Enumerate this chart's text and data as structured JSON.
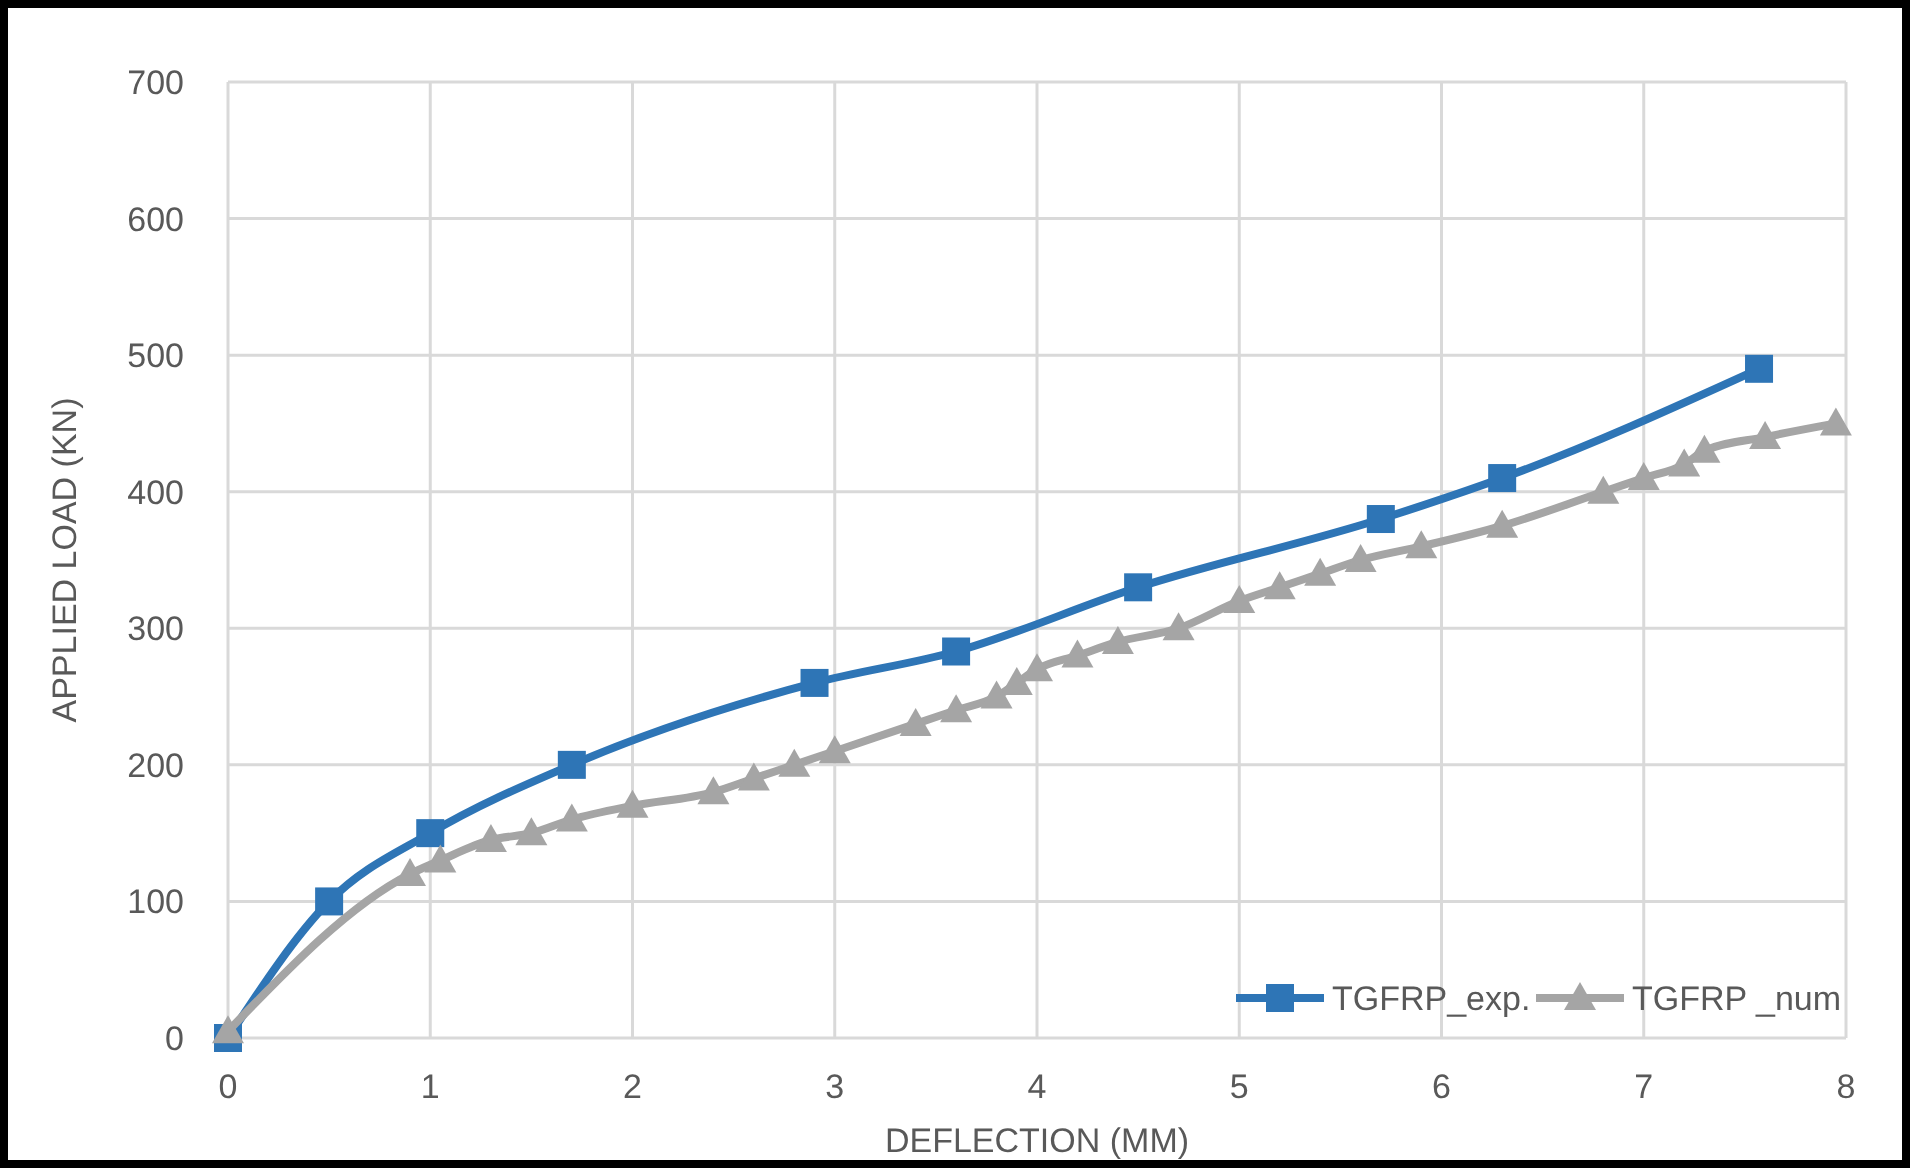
{
  "chart_data": {
    "type": "line",
    "xlabel": "DEFLECTION (MM)",
    "ylabel": "APPLIED LOAD (KN)",
    "xlim": [
      0,
      8
    ],
    "xticks": [
      0,
      1,
      2,
      3,
      4,
      5,
      6,
      7,
      8
    ],
    "ylim": [
      0,
      700
    ],
    "yticks": [
      0,
      100,
      200,
      300,
      400,
      500,
      600,
      700
    ],
    "grid": true,
    "legend": "bottom right",
    "series": [
      {
        "name": "TGFRP_exp.",
        "color": "#2e75b6",
        "marker": "square",
        "x": [
          0,
          0.5,
          1,
          1.7,
          2.9,
          3.6,
          4.5,
          5.7,
          6.3,
          7.57
        ],
        "values": [
          0,
          100,
          150,
          200,
          260,
          283,
          330,
          380,
          410,
          490
        ]
      },
      {
        "name": "TGFRP _num",
        "color": "#a5a5a5",
        "marker": "triangle",
        "x": [
          0,
          0.9,
          1.05,
          1.3,
          1.5,
          1.7,
          2,
          2.4,
          2.6,
          2.8,
          3,
          3.4,
          3.6,
          3.8,
          3.9,
          4,
          4.2,
          4.4,
          4.7,
          5,
          5.2,
          5.4,
          5.6,
          5.9,
          6.3,
          6.8,
          7,
          7.2,
          7.3,
          7.6,
          7.95
        ],
        "values": [
          5,
          120,
          130,
          145,
          150,
          160,
          170,
          180,
          190,
          200,
          210,
          230,
          240,
          250,
          260,
          270,
          280,
          290,
          300,
          320,
          330,
          340,
          350,
          360,
          375,
          400,
          410,
          420,
          430,
          440,
          450
        ]
      }
    ]
  }
}
